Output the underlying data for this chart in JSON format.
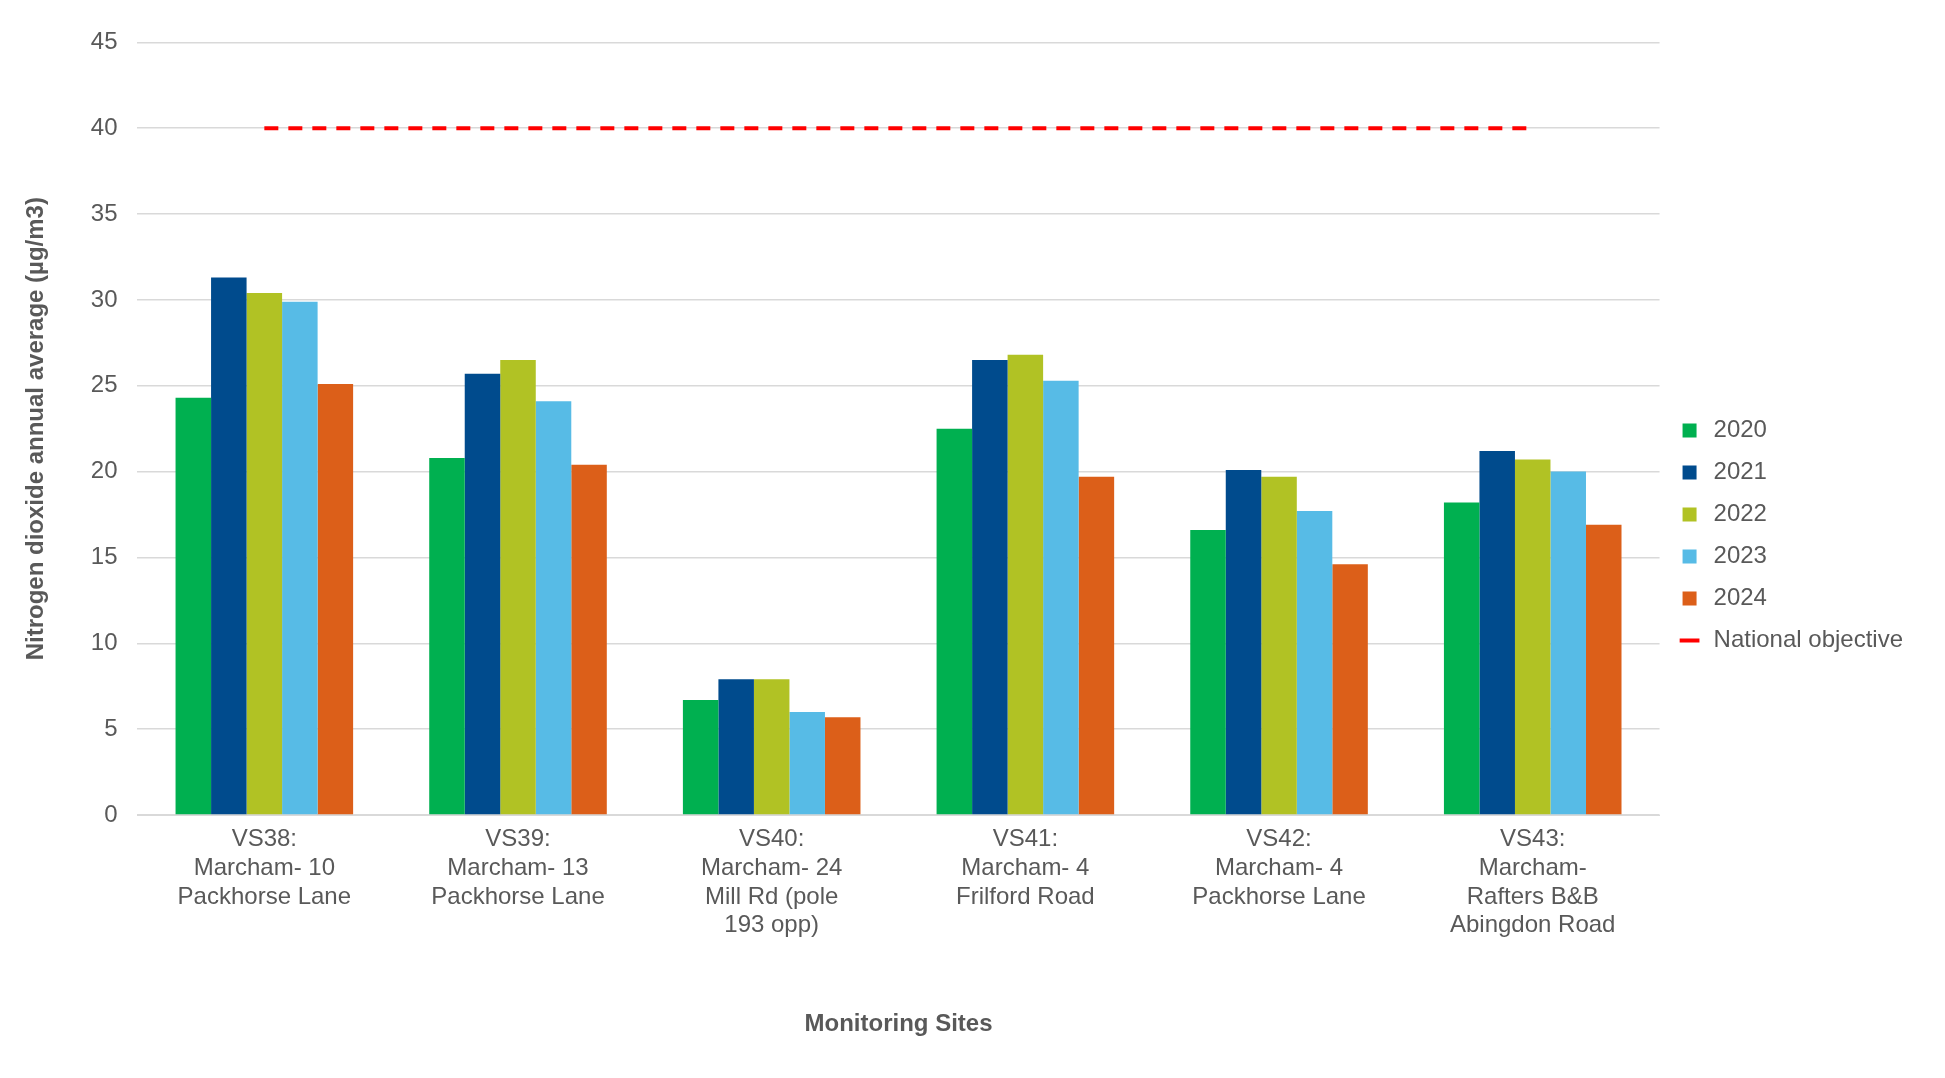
{
  "chart_data": {
    "type": "bar",
    "xlabel": "Monitoring Sites",
    "ylabel": "Nitrogen dioxide annual average (µg/m3)",
    "categories": [
      "VS38: Marcham- 10 Packhorse Lane",
      "VS39: Marcham- 13 Packhorse Lane",
      "VS40: Marcham- 24 Mill Rd (pole 193 opp)",
      "VS41: Marcham- 4 Frilford Road",
      "VS42: Marcham- 4 Packhorse Lane",
      "VS43: Marcham- Rafters B&B Abingdon Road"
    ],
    "series": [
      {
        "name": "2020",
        "color": "#00b050",
        "values": [
          24.3,
          20.8,
          6.7,
          22.5,
          16.6,
          18.2
        ]
      },
      {
        "name": "2021",
        "color": "#004b8d",
        "values": [
          31.3,
          25.7,
          7.9,
          26.5,
          20.1,
          21.2
        ]
      },
      {
        "name": "2022",
        "color": "#b1c224",
        "values": [
          30.4,
          26.5,
          7.9,
          26.8,
          19.7,
          20.7
        ]
      },
      {
        "name": "2023",
        "color": "#57bbe6",
        "values": [
          29.9,
          24.1,
          6.0,
          25.3,
          17.7,
          20.0
        ]
      },
      {
        "name": "2024",
        "color": "#dc5f19",
        "values": [
          25.1,
          20.4,
          5.7,
          19.7,
          14.6,
          16.9
        ]
      }
    ],
    "ref_lines": [
      {
        "axis": "y",
        "value": 40,
        "label": "National objective",
        "color": "#ff0000",
        "line_style": "dashed"
      }
    ],
    "ylim": [
      0,
      45
    ],
    "yticks": [
      0,
      5,
      10,
      15,
      20,
      25,
      30,
      35,
      40,
      45
    ],
    "grid": "y",
    "legend": "right"
  }
}
